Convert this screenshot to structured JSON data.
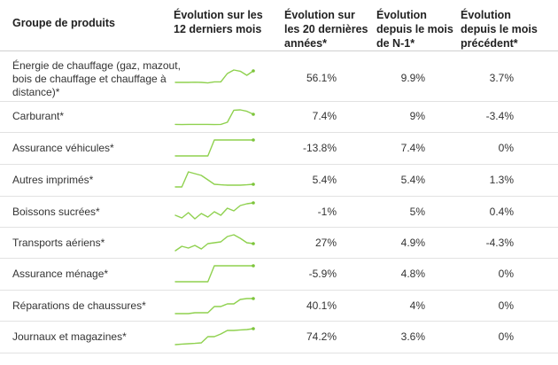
{
  "colors": {
    "sparkline": "#8fd14f",
    "sparkline_dot": "#7cc43a",
    "header_border": "#cfcfcf",
    "row_border": "#e2e2e2"
  },
  "header": {
    "product_group": "Groupe de produits",
    "trend_12_months": "Évolution sur les 12 derniers mois",
    "change_20_years": "Évolution sur les 20 dernières années*",
    "change_since_prior_year_month": "Évolution depuis le mois de N-1*",
    "change_since_previous_month": "Évolution depuis le mois précédent*"
  },
  "rows": [
    {
      "name": "Énergie de chauffage (gaz, mazout, bois de chauffage et chauffage à distance)*",
      "trend": [
        0.15,
        0.15,
        0.15,
        0.16,
        0.15,
        0.12,
        0.18,
        0.18,
        0.65,
        0.85,
        0.78,
        0.55,
        0.8
      ],
      "change_20y": "56.1%",
      "change_n1": "9.9%",
      "change_prev_month": "3.7%"
    },
    {
      "name": "Carburant*",
      "trend": [
        0.08,
        0.07,
        0.08,
        0.08,
        0.08,
        0.08,
        0.07,
        0.08,
        0.2,
        0.88,
        0.9,
        0.82,
        0.65
      ],
      "change_20y": "7.4%",
      "change_n1": "9%",
      "change_prev_month": "-3.4%"
    },
    {
      "name": "Assurance véhicules*",
      "trend": [
        0.05,
        0.05,
        0.05,
        0.05,
        0.05,
        0.05,
        0.95,
        0.95,
        0.95,
        0.95,
        0.95,
        0.95,
        0.95
      ],
      "change_20y": "-13.8%",
      "change_n1": "7.4%",
      "change_prev_month": "0%"
    },
    {
      "name": "Autres imprimés*",
      "trend": [
        0.1,
        0.1,
        0.95,
        0.85,
        0.75,
        0.5,
        0.25,
        0.22,
        0.2,
        0.2,
        0.2,
        0.22,
        0.25
      ],
      "change_20y": "5.4%",
      "change_n1": "5.4%",
      "change_prev_month": "1.3%"
    },
    {
      "name": "Boissons sucrées*",
      "trend": [
        0.3,
        0.15,
        0.45,
        0.1,
        0.4,
        0.2,
        0.5,
        0.3,
        0.7,
        0.55,
        0.85,
        0.95,
        1.0
      ],
      "change_20y": "-1%",
      "change_n1": "5%",
      "change_prev_month": "0.4%"
    },
    {
      "name": "Transports aériens*",
      "trend": [
        0.05,
        0.3,
        0.2,
        0.35,
        0.15,
        0.45,
        0.5,
        0.55,
        0.85,
        0.95,
        0.75,
        0.5,
        0.45
      ],
      "change_20y": "27%",
      "change_n1": "4.9%",
      "change_prev_month": "-4.3%"
    },
    {
      "name": "Assurance ménage*",
      "trend": [
        0.05,
        0.05,
        0.05,
        0.05,
        0.05,
        0.05,
        0.95,
        0.95,
        0.95,
        0.95,
        0.95,
        0.95,
        0.95
      ],
      "change_20y": "-5.9%",
      "change_n1": "4.8%",
      "change_prev_month": "0%"
    },
    {
      "name": "Réparations de chaussures*",
      "trend": [
        0.05,
        0.05,
        0.05,
        0.1,
        0.1,
        0.1,
        0.45,
        0.45,
        0.6,
        0.6,
        0.85,
        0.9,
        0.9
      ],
      "change_20y": "40.1%",
      "change_n1": "4%",
      "change_prev_month": "0%"
    },
    {
      "name": "Journaux et magazines*",
      "trend": [
        0.05,
        0.08,
        0.1,
        0.12,
        0.15,
        0.5,
        0.5,
        0.65,
        0.85,
        0.85,
        0.88,
        0.9,
        0.95
      ],
      "change_20y": "74.2%",
      "change_n1": "3.6%",
      "change_prev_month": "0%"
    }
  ]
}
